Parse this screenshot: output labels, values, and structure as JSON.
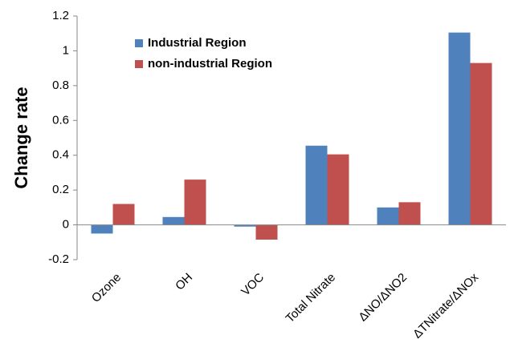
{
  "chart_data": {
    "type": "bar",
    "ylabel": "Change rate",
    "categories": [
      "Ozone",
      "OH",
      "VOC",
      "Total Nitrate",
      "ΔNO/ΔNO2",
      "ΔTNitrate/ΔNOx"
    ],
    "series": [
      {
        "name": "Industrial Region",
        "color": "#4f81bd",
        "values": [
          -0.05,
          0.045,
          -0.01,
          0.455,
          0.1,
          1.105
        ]
      },
      {
        "name": "non-industrial Region",
        "color": "#c0504d",
        "values": [
          0.12,
          0.26,
          -0.085,
          0.405,
          0.13,
          0.93
        ]
      }
    ],
    "ylim": [
      -0.2,
      1.2
    ],
    "yticks": [
      -0.2,
      0,
      0.2,
      0.4,
      0.6,
      0.8,
      1,
      1.2
    ],
    "grid": false,
    "legend": "upper left"
  }
}
